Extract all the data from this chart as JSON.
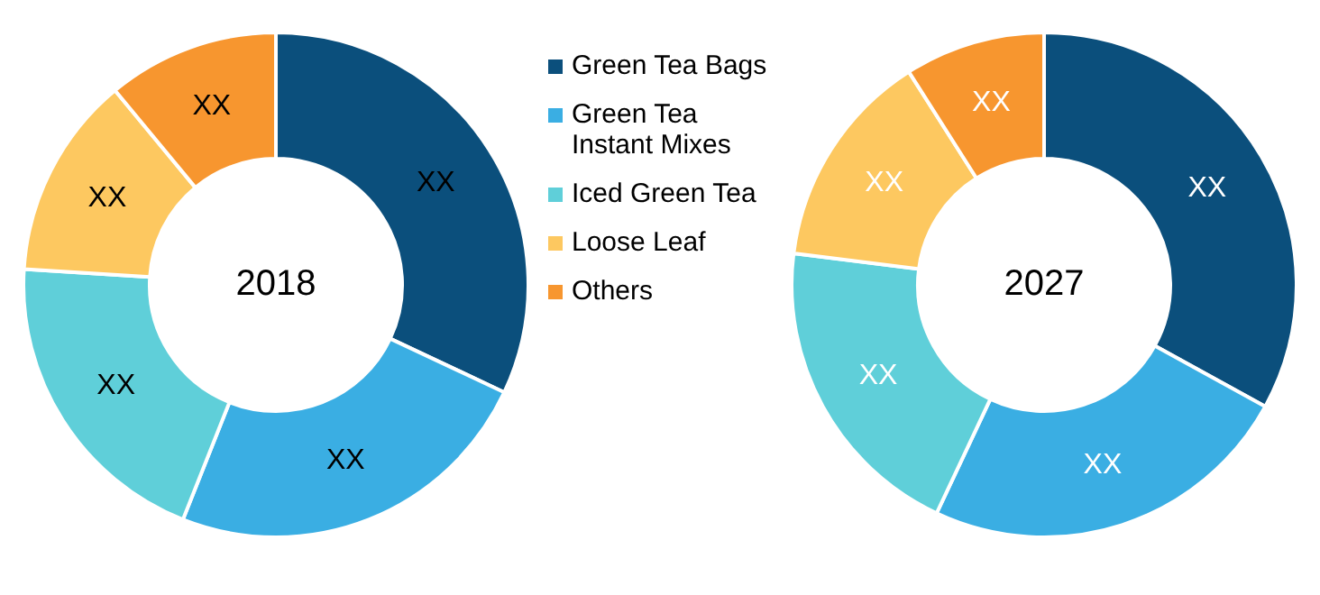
{
  "chart_data": [
    {
      "type": "donut",
      "title": "2018",
      "categories": [
        "Green Tea Bags",
        "Green Tea Instant Mixes",
        "Iced Green Tea",
        "Loose Leaf",
        "Others"
      ],
      "values": [
        32,
        24,
        20,
        13,
        11
      ],
      "colors": [
        "#0b4f7c",
        "#3aaee3",
        "#5fcfd9",
        "#fdc860",
        "#f7962f"
      ],
      "value_labels": [
        "XX",
        "XX",
        "XX",
        "XX",
        "XX"
      ],
      "legend": "right"
    },
    {
      "type": "donut",
      "title": "2027",
      "categories": [
        null,
        null,
        null,
        null,
        null
      ],
      "values": [
        33,
        24,
        20,
        14,
        9
      ],
      "colors": [
        "#0b4f7c",
        "#3aaee3",
        "#5fcfd9",
        "#fdc860",
        "#f7962f"
      ],
      "value_labels": [
        "XX",
        "XX",
        "XX",
        "XX",
        "XX"
      ]
    }
  ]
}
